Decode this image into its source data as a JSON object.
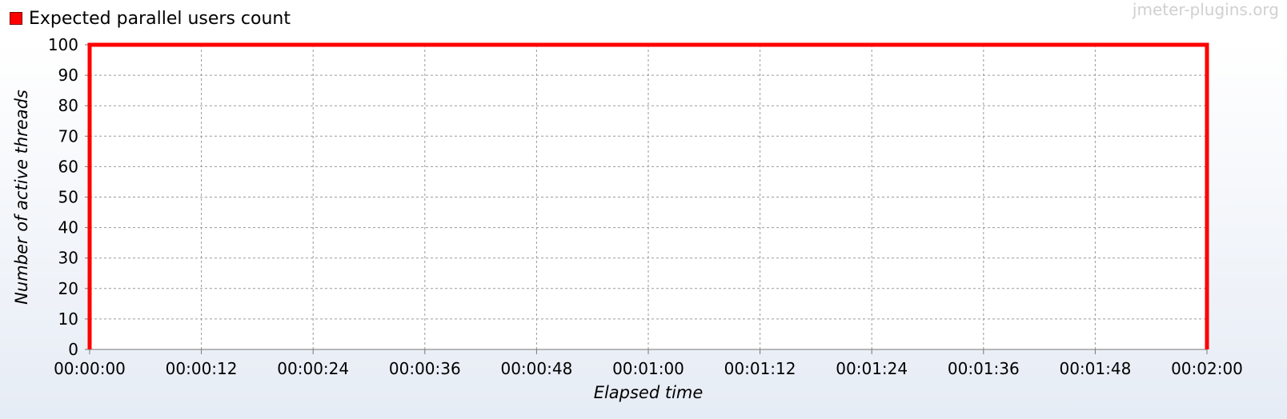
{
  "watermark": "jmeter-plugins.org",
  "chart_data": {
    "type": "line",
    "ylabel": "Number of active threads",
    "xlabel": "Elapsed time",
    "ylim": [
      0,
      100
    ],
    "yticks": [
      "0",
      "10",
      "20",
      "30",
      "40",
      "50",
      "60",
      "70",
      "80",
      "90",
      "100"
    ],
    "xlim": [
      "00:00:00",
      "00:02:00"
    ],
    "xticks": [
      "00:00:00",
      "00:00:12",
      "00:00:24",
      "00:00:36",
      "00:00:48",
      "00:01:00",
      "00:01:12",
      "00:01:24",
      "00:01:36",
      "00:01:48",
      "00:02:00"
    ],
    "grid": true,
    "legend_position": "top-left",
    "series": [
      {
        "name": "Expected parallel users count",
        "color": "#ff0000",
        "x": [
          "00:00:00",
          "00:00:00",
          "00:02:00",
          "00:02:00"
        ],
        "y": [
          0,
          100,
          100,
          0
        ]
      }
    ]
  }
}
